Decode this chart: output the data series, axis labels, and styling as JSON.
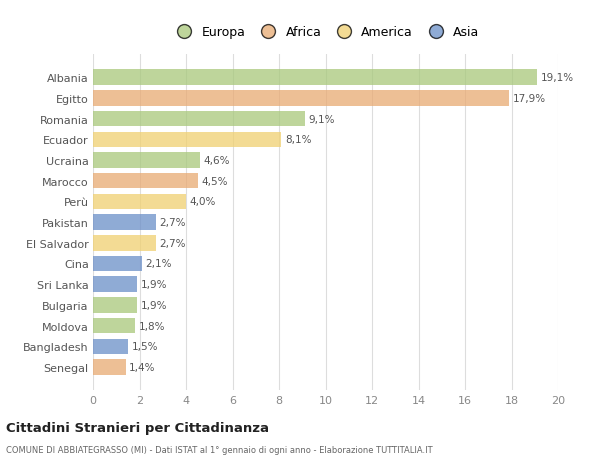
{
  "countries": [
    "Albania",
    "Egitto",
    "Romania",
    "Ecuador",
    "Ucraina",
    "Marocco",
    "Perù",
    "Pakistan",
    "El Salvador",
    "Cina",
    "Sri Lanka",
    "Bulgaria",
    "Moldova",
    "Bangladesh",
    "Senegal"
  ],
  "values": [
    19.1,
    17.9,
    9.1,
    8.1,
    4.6,
    4.5,
    4.0,
    2.7,
    2.7,
    2.1,
    1.9,
    1.9,
    1.8,
    1.5,
    1.4
  ],
  "labels": [
    "19,1%",
    "17,9%",
    "9,1%",
    "8,1%",
    "4,6%",
    "4,5%",
    "4,0%",
    "2,7%",
    "2,7%",
    "2,1%",
    "1,9%",
    "1,9%",
    "1,8%",
    "1,5%",
    "1,4%"
  ],
  "regions": [
    "Europa",
    "Africa",
    "Europa",
    "America",
    "Europa",
    "Africa",
    "America",
    "Asia",
    "America",
    "Asia",
    "Asia",
    "Europa",
    "Europa",
    "Asia",
    "Africa"
  ],
  "colors": {
    "Europa": "#a8c87a",
    "Africa": "#e8aa72",
    "America": "#f0d070",
    "Asia": "#6a8fc8"
  },
  "legend_labels": [
    "Europa",
    "Africa",
    "America",
    "Asia"
  ],
  "legend_colors": [
    "#a8c87a",
    "#e8aa72",
    "#f0d070",
    "#6a8fc8"
  ],
  "xlim": [
    0,
    20
  ],
  "xticks": [
    0,
    2,
    4,
    6,
    8,
    10,
    12,
    14,
    16,
    18,
    20
  ],
  "title": "Cittadini Stranieri per Cittadinanza",
  "subtitle": "COMUNE DI ABBIATEGRASSO (MI) - Dati ISTAT al 1° gennaio di ogni anno - Elaborazione TUTTITALIA.IT",
  "bg_color": "#ffffff",
  "bar_alpha": 0.75
}
